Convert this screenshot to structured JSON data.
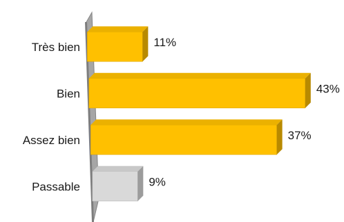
{
  "chart_data": {
    "type": "bar",
    "orientation": "horizontal",
    "style": "3d",
    "categories": [
      "Très bien",
      "Bien",
      "Assez bien",
      "Passable"
    ],
    "values": [
      11,
      43,
      37,
      9
    ],
    "data_labels": [
      "11%",
      "43%",
      "37%",
      "9%"
    ],
    "value_unit": "%",
    "xlim": [
      0,
      43
    ],
    "grid": false,
    "legend": "none",
    "colors": [
      "#ffc000",
      "#ffc000",
      "#ffc000",
      "#d9d9d9"
    ],
    "axis_wall_color": "#a6a6a6"
  }
}
